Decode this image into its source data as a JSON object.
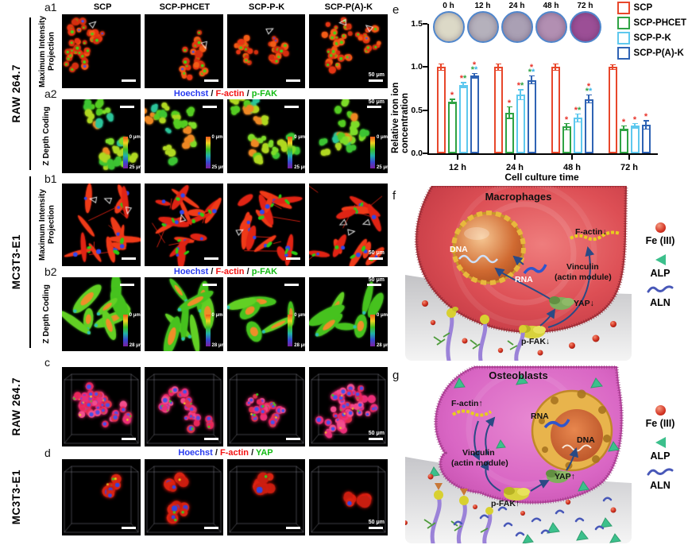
{
  "microscopy": {
    "col_headers": [
      "SCP",
      "SCP-PHCET",
      "SCP-P-K",
      "SCP-P(A)-K"
    ],
    "letters": {
      "a1": "a1",
      "a2": "a2",
      "b1": "b1",
      "b2": "b2",
      "c": "c",
      "d": "d"
    },
    "row_label_mip": "Maximum Intensity Projection",
    "row_label_zdc": "Z Depth Coding",
    "cell_raw": "RAW 264.7",
    "cell_mc": "MC3T3-E1",
    "stain_sep": " / ",
    "stain_fak": {
      "p1": "Hoechst",
      "p2": "F-actin",
      "p3": "p-FAK"
    },
    "stain_yap": {
      "p1": "Hoechst",
      "p2": "F-actin",
      "p3": "YAP"
    },
    "depth_zero": "0 μm",
    "depth_max_a": "25 μm",
    "depth_max_b": "28 μm",
    "scale_label": "50 μm"
  },
  "chart_data": {
    "type": "bar",
    "letter": "e",
    "xlabel": "Cell culture time",
    "ylabel": "Relative iron ion concentration",
    "ylim": [
      0,
      1.5
    ],
    "yticks": [
      "0.0",
      "0.5",
      "1.0",
      "1.5"
    ],
    "categories": [
      "12 h",
      "24 h",
      "48 h",
      "72 h"
    ],
    "series": [
      {
        "name": "SCP",
        "color": "#e8472b",
        "values": [
          1.0,
          1.0,
          1.0,
          1.0
        ],
        "errors": [
          0.03,
          0.03,
          0.03,
          0.02
        ]
      },
      {
        "name": "SCP-PHCET",
        "color": "#2fa344",
        "values": [
          0.6,
          0.47,
          0.31,
          0.29
        ],
        "errors": [
          0.02,
          0.06,
          0.03,
          0.02
        ]
      },
      {
        "name": "SCP-P-K",
        "color": "#5ec8ee",
        "values": [
          0.79,
          0.68,
          0.41,
          0.32
        ],
        "errors": [
          0.02,
          0.05,
          0.04,
          0.02
        ]
      },
      {
        "name": "SCP-P(A)-K",
        "color": "#2f63b4",
        "values": [
          0.9,
          0.85,
          0.63,
          0.33
        ],
        "errors": [
          0.02,
          0.04,
          0.04,
          0.04
        ]
      }
    ],
    "significance": [
      [
        "",
        "r",
        "rg",
        "r|gc"
      ],
      [
        "",
        "r",
        "rg",
        "r|gc"
      ],
      [
        "",
        "r",
        "rg",
        "r|gc"
      ],
      [
        "",
        "r",
        "r",
        "r"
      ]
    ],
    "sig_colors": {
      "r": "#e8332a",
      "g": "#2fa344",
      "c": "#3ab4e8"
    },
    "insets": [
      {
        "label": "0 h",
        "color": "#dcd9c7"
      },
      {
        "label": "12 h",
        "color": "#b5b1bc"
      },
      {
        "label": "24 h",
        "color": "#aaa0b4"
      },
      {
        "label": "48 h",
        "color": "#b28fb2"
      },
      {
        "label": "72 h",
        "color": "#9c4f96"
      }
    ],
    "legend_position": "top-right",
    "grid": false
  },
  "diagram_f": {
    "letter": "f",
    "title": "Macrophages",
    "dna": "DNA",
    "rna": "RNA",
    "factin": "F-actin↓",
    "vinculin1": "Vinculin",
    "vinculin2": "(actin module)",
    "yap": "YAP↓",
    "pfak": "p-FAK↓"
  },
  "diagram_g": {
    "letter": "g",
    "title": "Osteoblasts",
    "dna": "DNA",
    "rna": "RNA",
    "factin": "F-actin↑",
    "vinculin1": "Vinculin",
    "vinculin2": "(actin module)",
    "yap": "YAP↑",
    "pfak": "p-FAK↑"
  },
  "fg_legend": {
    "fe": "Fe (III)",
    "alp": "ALP",
    "aln": "ALN"
  }
}
